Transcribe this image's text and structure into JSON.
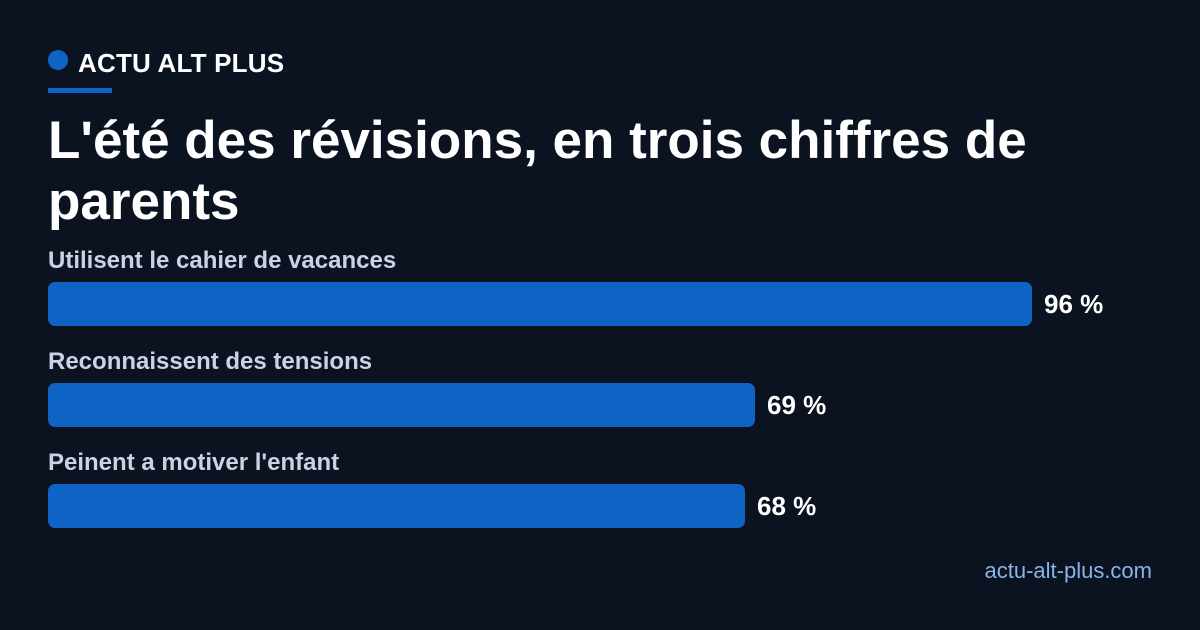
{
  "brand": {
    "name": "ACTU ALT PLUS",
    "accent_color": "#0e63c4"
  },
  "title": "L'été des révisions, en trois chiffres de parents",
  "source": "actu-alt-plus.com",
  "chart_data": {
    "type": "bar",
    "orientation": "horizontal",
    "categories": [
      "Utilisent le cahier de vacances",
      "Reconnaissent des tensions",
      "Peinent a motiver l'enfant"
    ],
    "values": [
      96,
      69,
      68
    ],
    "value_labels": [
      "96 %",
      "69 %",
      "68 %"
    ],
    "unit": "%",
    "xlim": [
      0,
      100
    ],
    "grid": false,
    "bar_color": "#0e63c4",
    "background_color": "#0b1220"
  }
}
